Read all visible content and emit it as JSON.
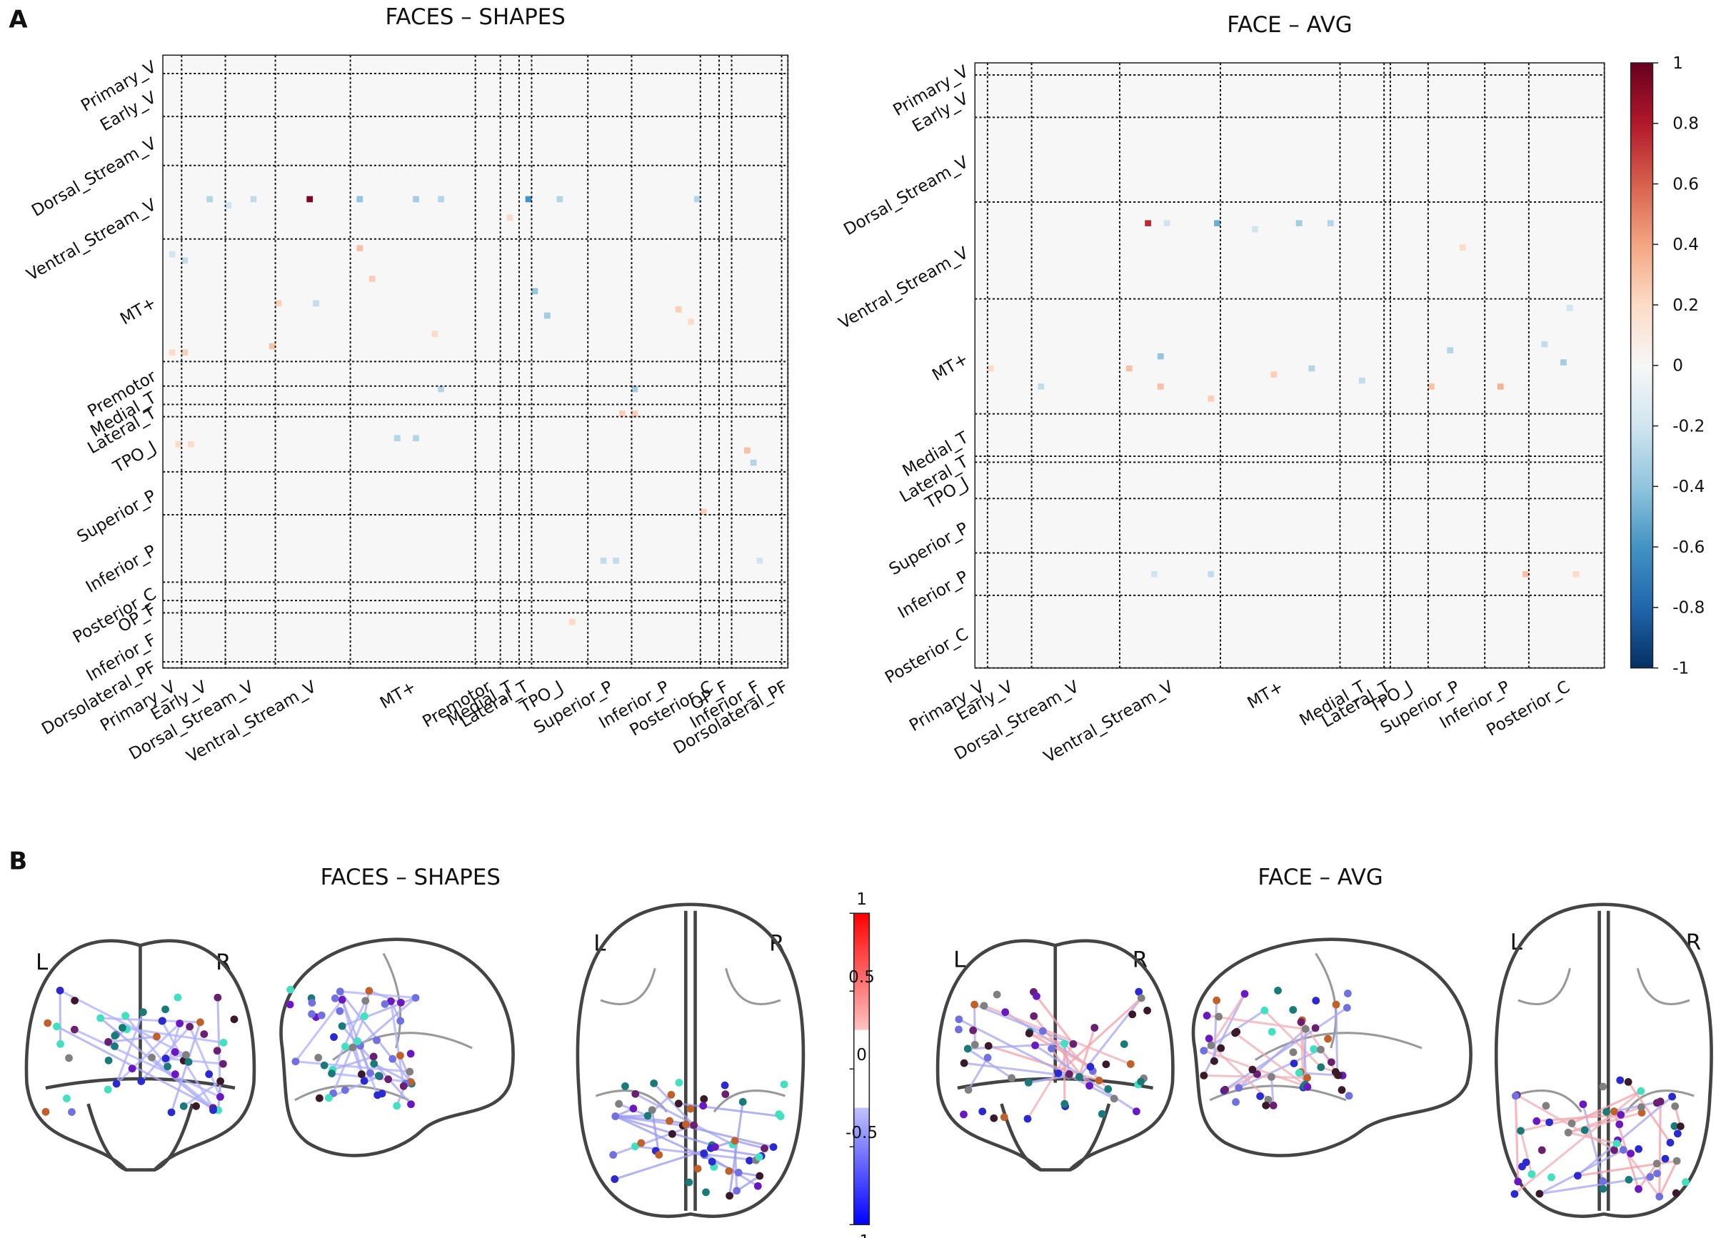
{
  "panel_labels": [
    "A",
    "B"
  ],
  "chart_data": [
    {
      "type": "heatmap",
      "title": "FACES – SHAPES",
      "regions": [
        "Primary_V",
        "Early_V",
        "Dorsal_Stream_V",
        "Ventral_Stream_V",
        "MT+",
        "Premotor",
        "Medial_T",
        "Lateral_T",
        "TPO_J",
        "Superior_P",
        "Inferior_P",
        "Posterior_C",
        "OP_F",
        "Inferior_F",
        "Dorsolateral_PF"
      ],
      "region_sizes": [
        3,
        7,
        8,
        12,
        20,
        4,
        3,
        2,
        9,
        7,
        11,
        3,
        2,
        8,
        1
      ],
      "zlim": [
        -1,
        1
      ],
      "colormap": [
        "#053061",
        "#2166ac",
        "#4393c3",
        "#92c5de",
        "#d1e5f0",
        "#f7f7f7",
        "#fddbc7",
        "#f4a582",
        "#d6604d",
        "#b2182b",
        "#67001f"
      ],
      "cells": [
        [
          23,
          23,
          0.95
        ],
        [
          23,
          7,
          -0.3
        ],
        [
          23,
          14,
          -0.25
        ],
        [
          23,
          31,
          -0.4
        ],
        [
          23,
          40,
          -0.35
        ],
        [
          23,
          44,
          -0.3
        ],
        [
          23,
          58,
          -0.6
        ],
        [
          23,
          63,
          -0.3
        ],
        [
          23,
          85,
          -0.3
        ],
        [
          24,
          10,
          -0.2
        ],
        [
          32,
          1,
          -0.2
        ],
        [
          33,
          3,
          -0.25
        ],
        [
          40,
          18,
          0.25
        ],
        [
          47,
          17,
          0.3
        ],
        [
          31,
          31,
          0.3
        ],
        [
          38,
          59,
          -0.4
        ],
        [
          42,
          61,
          -0.35
        ],
        [
          45,
          43,
          0.2
        ],
        [
          41,
          82,
          0.25
        ],
        [
          54,
          75,
          -0.35
        ],
        [
          48,
          1,
          0.2
        ],
        [
          48,
          3,
          0.25
        ],
        [
          54,
          44,
          -0.3
        ],
        [
          40,
          24,
          -0.25
        ],
        [
          36,
          33,
          0.25
        ],
        [
          58,
          73,
          0.25
        ],
        [
          58,
          75,
          0.25
        ],
        [
          63,
          2,
          0.2
        ],
        [
          63,
          4,
          0.2
        ],
        [
          62,
          37,
          -0.3
        ],
        [
          62,
          40,
          -0.3
        ],
        [
          64,
          93,
          0.3
        ],
        [
          66,
          94,
          -0.3
        ],
        [
          74,
          86,
          0.25
        ],
        [
          82,
          70,
          -0.25
        ],
        [
          82,
          72,
          -0.25
        ],
        [
          82,
          95,
          -0.2
        ],
        [
          92,
          65,
          0.2
        ],
        [
          43,
          84,
          0.2
        ],
        [
          26,
          55,
          0.2
        ]
      ]
    },
    {
      "type": "heatmap",
      "title": "FACE – AVG",
      "regions": [
        "Primary_V",
        "Early_V",
        "Dorsal_Stream_V",
        "Ventral_Stream_V",
        "MT+",
        "Medial_T",
        "Lateral_T",
        "TPO_J",
        "Superior_P",
        "Inferior_P",
        "Posterior_C"
      ],
      "region_sizes": [
        2,
        7,
        14,
        16,
        19,
        7,
        1,
        6,
        9,
        7,
        12
      ],
      "zlim": [
        -1,
        1
      ],
      "colormap": [
        "#053061",
        "#2166ac",
        "#4393c3",
        "#92c5de",
        "#d1e5f0",
        "#f7f7f7",
        "#fddbc7",
        "#f4a582",
        "#d6604d",
        "#b2182b",
        "#67001f"
      ],
      "cells": [
        [
          26,
          27,
          0.75
        ],
        [
          26,
          38,
          -0.5
        ],
        [
          26,
          51,
          -0.35
        ],
        [
          26,
          56,
          -0.3
        ],
        [
          26,
          30,
          -0.2
        ],
        [
          27,
          44,
          -0.2
        ],
        [
          50,
          24,
          0.3
        ],
        [
          48,
          29,
          -0.4
        ],
        [
          53,
          29,
          0.3
        ],
        [
          50,
          53,
          -0.3
        ],
        [
          53,
          72,
          0.3
        ],
        [
          47,
          75,
          -0.3
        ],
        [
          53,
          83,
          0.35
        ],
        [
          49,
          93,
          -0.35
        ],
        [
          50,
          2,
          0.2
        ],
        [
          53,
          10,
          -0.25
        ],
        [
          55,
          37,
          0.25
        ],
        [
          51,
          47,
          0.25
        ],
        [
          52,
          61,
          -0.25
        ],
        [
          46,
          90,
          -0.25
        ],
        [
          84,
          87,
          0.3
        ],
        [
          84,
          37,
          -0.25
        ],
        [
          84,
          28,
          -0.2
        ],
        [
          84,
          95,
          0.2
        ],
        [
          30,
          77,
          0.2
        ],
        [
          40,
          94,
          -0.2
        ]
      ]
    },
    {
      "type": "colorbar",
      "zlim": [
        -1,
        1
      ],
      "colormap": [
        "#053061",
        "#2166ac",
        "#4393c3",
        "#92c5de",
        "#d1e5f0",
        "#f7f7f7",
        "#fddbc7",
        "#f4a582",
        "#d6604d",
        "#b2182b",
        "#67001f"
      ],
      "ticks": [
        1,
        0.8,
        0.6,
        0.4,
        0.2,
        0,
        -0.2,
        -0.4,
        -0.6,
        -0.8,
        -1
      ]
    },
    {
      "type": "colorbar",
      "zlim": [
        -1,
        1
      ],
      "threshold": 0.25,
      "colormap": [
        "#0000ff",
        "#ffffff",
        "#ff0000"
      ],
      "ticks": [
        1,
        0.5,
        0,
        -0.5,
        -1
      ]
    }
  ],
  "brain_panels": [
    {
      "title": "FACES – SHAPES",
      "coronal": {
        "left": "L",
        "right": "R"
      },
      "axial": {
        "left": "L",
        "right": "R"
      }
    },
    {
      "title": "FACE – AVG",
      "coronal": {
        "left": "L",
        "right": "R"
      },
      "axial": {
        "left": "L",
        "right": "R"
      }
    }
  ]
}
